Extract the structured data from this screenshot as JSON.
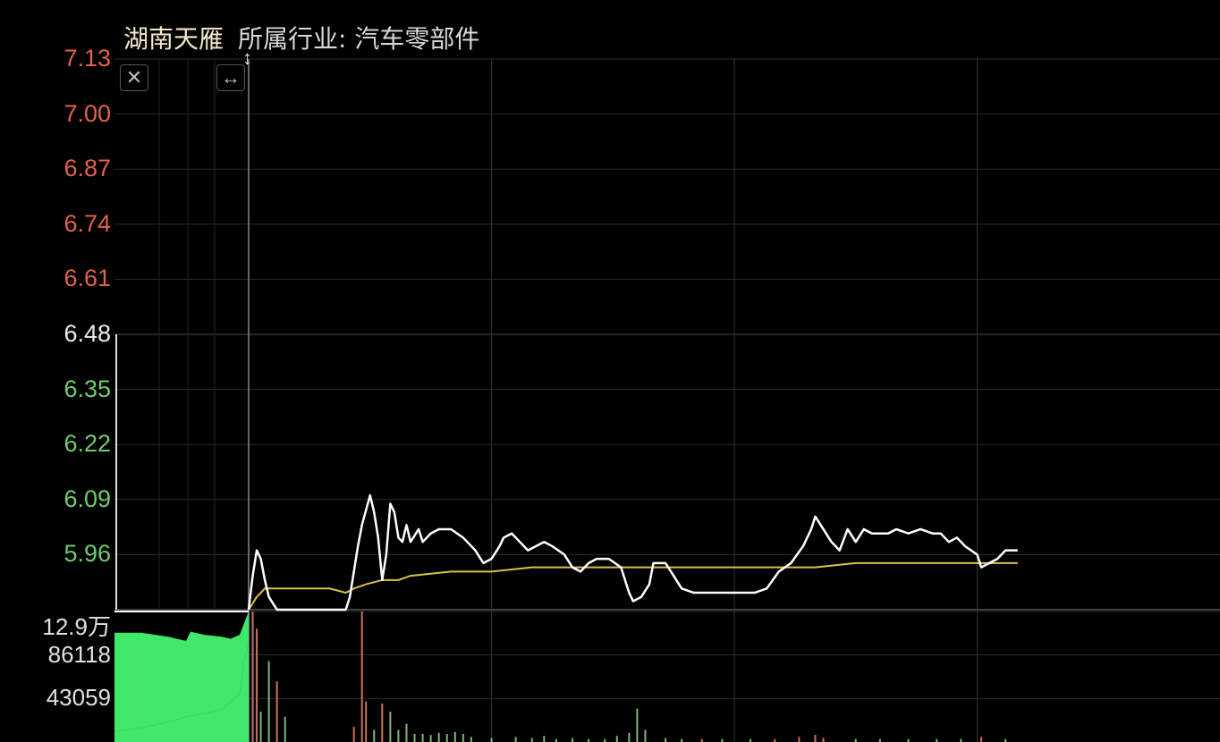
{
  "header": {
    "stock_name": "湖南天雁",
    "industry": "所属行业: 汽车零部件"
  },
  "controls": {
    "close_icon": "close-icon",
    "expand_icon": "horizontal-resize-icon",
    "drag_icon": "vertical-drag-icon"
  },
  "colors": {
    "price_line": "#ffffff",
    "avg_line": "#d8c24a",
    "up": "#e0624a",
    "down": "#6fcb6f",
    "grid": "#2a2a2a",
    "auction_fill": "#3fe86a"
  },
  "chart_data": {
    "type": "line",
    "price_axis": {
      "ticks": [
        {
          "label": "7.13",
          "value": 7.13,
          "color": "red"
        },
        {
          "label": "7.00",
          "value": 7.0,
          "color": "red"
        },
        {
          "label": "6.87",
          "value": 6.87,
          "color": "red"
        },
        {
          "label": "6.74",
          "value": 6.74,
          "color": "red"
        },
        {
          "label": "6.61",
          "value": 6.61,
          "color": "red"
        },
        {
          "label": "6.48",
          "value": 6.48,
          "color": "white"
        },
        {
          "label": "6.35",
          "value": 6.35,
          "color": "green"
        },
        {
          "label": "6.22",
          "value": 6.22,
          "color": "green"
        },
        {
          "label": "6.09",
          "value": 6.09,
          "color": "green"
        },
        {
          "label": "5.96",
          "value": 5.96,
          "color": "green"
        }
      ],
      "ylim": [
        5.83,
        7.13
      ],
      "reference": 6.48
    },
    "volume_axis": {
      "ticks": [
        {
          "label": "12.9万",
          "value": 129000
        },
        {
          "label": "86118",
          "value": 86118
        },
        {
          "label": "43059",
          "value": 43059
        }
      ],
      "ylim": [
        0,
        129000
      ]
    },
    "x_range": [
      0,
      240
    ],
    "price": [
      [
        0,
        5.83
      ],
      [
        1,
        5.91
      ],
      [
        2,
        5.97
      ],
      [
        3,
        5.95
      ],
      [
        4,
        5.9
      ],
      [
        5,
        5.86
      ],
      [
        7,
        5.83
      ],
      [
        13,
        5.83
      ],
      [
        20,
        5.83
      ],
      [
        24,
        5.83
      ],
      [
        25,
        5.86
      ],
      [
        27,
        5.98
      ],
      [
        28,
        6.03
      ],
      [
        30,
        6.1
      ],
      [
        31,
        6.06
      ],
      [
        32,
        6.0
      ],
      [
        33,
        5.9
      ],
      [
        34,
        5.96
      ],
      [
        35,
        6.08
      ],
      [
        36,
        6.06
      ],
      [
        37,
        6.0
      ],
      [
        38,
        5.99
      ],
      [
        39,
        6.03
      ],
      [
        40,
        5.99
      ],
      [
        42,
        6.02
      ],
      [
        43,
        5.99
      ],
      [
        45,
        6.01
      ],
      [
        47,
        6.02
      ],
      [
        50,
        6.02
      ],
      [
        53,
        6.0
      ],
      [
        56,
        5.97
      ],
      [
        58,
        5.94
      ],
      [
        60,
        5.95
      ],
      [
        62,
        5.98
      ],
      [
        63,
        6.0
      ],
      [
        65,
        6.01
      ],
      [
        67,
        5.99
      ],
      [
        69,
        5.97
      ],
      [
        71,
        5.98
      ],
      [
        73,
        5.99
      ],
      [
        75,
        5.98
      ],
      [
        78,
        5.96
      ],
      [
        80,
        5.93
      ],
      [
        82,
        5.92
      ],
      [
        84,
        5.94
      ],
      [
        86,
        5.95
      ],
      [
        89,
        5.95
      ],
      [
        92,
        5.93
      ],
      [
        94,
        5.87
      ],
      [
        95,
        5.85
      ],
      [
        97,
        5.86
      ],
      [
        99,
        5.89
      ],
      [
        100,
        5.94
      ],
      [
        103,
        5.94
      ],
      [
        105,
        5.91
      ],
      [
        107,
        5.88
      ],
      [
        110,
        5.87
      ],
      [
        119,
        5.87
      ],
      [
        125,
        5.87
      ],
      [
        128,
        5.88
      ],
      [
        131,
        5.92
      ],
      [
        134,
        5.94
      ],
      [
        137,
        5.98
      ],
      [
        139,
        6.02
      ],
      [
        140,
        6.05
      ],
      [
        142,
        6.02
      ],
      [
        144,
        5.99
      ],
      [
        146,
        5.97
      ],
      [
        148,
        6.02
      ],
      [
        150,
        5.99
      ],
      [
        152,
        6.02
      ],
      [
        154,
        6.01
      ],
      [
        156,
        6.01
      ],
      [
        158,
        6.01
      ],
      [
        160,
        6.02
      ],
      [
        163,
        6.01
      ],
      [
        166,
        6.02
      ],
      [
        169,
        6.01
      ],
      [
        171,
        6.01
      ],
      [
        173,
        5.99
      ],
      [
        175,
        6.0
      ],
      [
        177,
        5.98
      ],
      [
        180,
        5.96
      ],
      [
        181,
        5.93
      ],
      [
        183,
        5.94
      ],
      [
        185,
        5.95
      ],
      [
        187,
        5.97
      ],
      [
        190,
        5.97
      ]
    ],
    "average": [
      [
        0,
        5.83
      ],
      [
        2,
        5.86
      ],
      [
        4,
        5.88
      ],
      [
        7,
        5.88
      ],
      [
        13,
        5.88
      ],
      [
        20,
        5.88
      ],
      [
        24,
        5.87
      ],
      [
        26,
        5.88
      ],
      [
        29,
        5.89
      ],
      [
        33,
        5.9
      ],
      [
        37,
        5.9
      ],
      [
        40,
        5.91
      ],
      [
        50,
        5.92
      ],
      [
        60,
        5.92
      ],
      [
        70,
        5.93
      ],
      [
        80,
        5.93
      ],
      [
        90,
        5.93
      ],
      [
        100,
        5.93
      ],
      [
        110,
        5.93
      ],
      [
        120,
        5.93
      ],
      [
        130,
        5.93
      ],
      [
        140,
        5.93
      ],
      [
        150,
        5.94
      ],
      [
        160,
        5.94
      ],
      [
        170,
        5.94
      ],
      [
        180,
        5.94
      ],
      [
        190,
        5.94
      ]
    ],
    "auction_volume": [
      [
        -28,
        10000
      ],
      [
        -22,
        14000
      ],
      [
        -16,
        20000
      ],
      [
        -12,
        25000
      ],
      [
        -8,
        28000
      ],
      [
        -4,
        32000
      ],
      [
        0,
        48000
      ],
      [
        1,
        80000
      ],
      [
        2,
        98000
      ]
    ],
    "auction_volume_upper": [
      [
        -28,
        108000
      ],
      [
        -22,
        108000
      ],
      [
        -16,
        104000
      ],
      [
        -12,
        100000
      ],
      [
        -11,
        109000
      ],
      [
        -8,
        106000
      ],
      [
        -4,
        104000
      ],
      [
        -2,
        102000
      ],
      [
        0,
        106000
      ],
      [
        2,
        129000
      ]
    ],
    "volume_bars": [
      {
        "x": 1,
        "v": 129000,
        "dir": "up"
      },
      {
        "x": 2,
        "v": 112000,
        "dir": "up"
      },
      {
        "x": 3,
        "v": 30000,
        "dir": "down"
      },
      {
        "x": 5,
        "v": 80000,
        "dir": "down"
      },
      {
        "x": 7,
        "v": 60000,
        "dir": "up"
      },
      {
        "x": 9,
        "v": 25000,
        "dir": "down"
      },
      {
        "x": 26,
        "v": 15000,
        "dir": "up"
      },
      {
        "x": 28,
        "v": 129000,
        "dir": "up"
      },
      {
        "x": 29,
        "v": 40000,
        "dir": "up"
      },
      {
        "x": 31,
        "v": 12000,
        "dir": "down"
      },
      {
        "x": 33,
        "v": 38000,
        "dir": "up"
      },
      {
        "x": 35,
        "v": 30000,
        "dir": "down"
      },
      {
        "x": 37,
        "v": 12000,
        "dir": "down"
      },
      {
        "x": 39,
        "v": 18000,
        "dir": "down"
      },
      {
        "x": 41,
        "v": 8000,
        "dir": "down"
      },
      {
        "x": 43,
        "v": 8000,
        "dir": "down"
      },
      {
        "x": 45,
        "v": 7000,
        "dir": "down"
      },
      {
        "x": 47,
        "v": 9000,
        "dir": "down"
      },
      {
        "x": 49,
        "v": 8000,
        "dir": "down"
      },
      {
        "x": 51,
        "v": 10000,
        "dir": "down"
      },
      {
        "x": 53,
        "v": 8000,
        "dir": "down"
      },
      {
        "x": 55,
        "v": 5000,
        "dir": "down"
      },
      {
        "x": 60,
        "v": 4000,
        "dir": "down"
      },
      {
        "x": 66,
        "v": 5000,
        "dir": "down"
      },
      {
        "x": 70,
        "v": 4000,
        "dir": "down"
      },
      {
        "x": 73,
        "v": 6000,
        "dir": "down"
      },
      {
        "x": 76,
        "v": 3000,
        "dir": "down"
      },
      {
        "x": 80,
        "v": 4000,
        "dir": "down"
      },
      {
        "x": 84,
        "v": 3000,
        "dir": "down"
      },
      {
        "x": 88,
        "v": 3000,
        "dir": "down"
      },
      {
        "x": 91,
        "v": 6000,
        "dir": "down"
      },
      {
        "x": 94,
        "v": 9000,
        "dir": "down"
      },
      {
        "x": 96,
        "v": 33000,
        "dir": "down"
      },
      {
        "x": 98,
        "v": 12000,
        "dir": "down"
      },
      {
        "x": 103,
        "v": 4000,
        "dir": "down"
      },
      {
        "x": 107,
        "v": 3000,
        "dir": "down"
      },
      {
        "x": 112,
        "v": 3000,
        "dir": "up"
      },
      {
        "x": 117,
        "v": 3000,
        "dir": "down"
      },
      {
        "x": 124,
        "v": 3000,
        "dir": "down"
      },
      {
        "x": 130,
        "v": 3000,
        "dir": "up"
      },
      {
        "x": 136,
        "v": 5000,
        "dir": "up"
      },
      {
        "x": 140,
        "v": 7000,
        "dir": "up"
      },
      {
        "x": 142,
        "v": 4000,
        "dir": "up"
      },
      {
        "x": 150,
        "v": 3000,
        "dir": "down"
      },
      {
        "x": 156,
        "v": 3000,
        "dir": "down"
      },
      {
        "x": 163,
        "v": 3000,
        "dir": "down"
      },
      {
        "x": 170,
        "v": 3000,
        "dir": "down"
      },
      {
        "x": 176,
        "v": 3000,
        "dir": "down"
      },
      {
        "x": 181,
        "v": 5000,
        "dir": "up"
      },
      {
        "x": 187,
        "v": 3000,
        "dir": "down"
      }
    ],
    "grid": true,
    "legend": "none"
  }
}
